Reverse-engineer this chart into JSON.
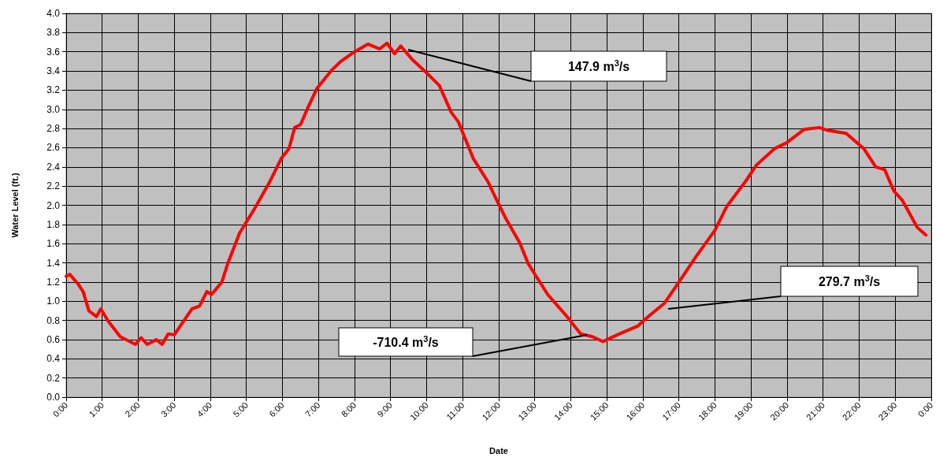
{
  "chart_data": {
    "type": "line",
    "xlabel": "Date",
    "ylabel": "Water Level (ft.)",
    "x": [
      0,
      0.1,
      0.35,
      0.47,
      0.63,
      0.84,
      0.96,
      1.17,
      1.5,
      1.92,
      2.08,
      2.25,
      2.5,
      2.66,
      2.83,
      3.0,
      3.49,
      3.7,
      3.9,
      4.03,
      4.32,
      4.48,
      4.81,
      5.22,
      5.64,
      5.97,
      6.18,
      6.34,
      6.5,
      6.72,
      6.96,
      7.37,
      7.62,
      8.0,
      8.37,
      8.7,
      8.9,
      9.11,
      9.28,
      9.6,
      10.0,
      10.35,
      10.68,
      10.88,
      11.29,
      11.71,
      11.91,
      12.2,
      12.58,
      12.82,
      13.36,
      13.94,
      14.27,
      14.6,
      14.89,
      15.35,
      15.85,
      16.18,
      16.6,
      17.0,
      17.5,
      18.0,
      18.33,
      18.83,
      19.15,
      19.65,
      19.98,
      20.47,
      20.89,
      21.14,
      21.64,
      22.13,
      22.46,
      22.71,
      22.96,
      23.2,
      23.61,
      23.85
    ],
    "series": [
      {
        "color": "#ff0000",
        "values": [
          1.26,
          1.28,
          1.17,
          1.1,
          0.9,
          0.84,
          0.92,
          0.79,
          0.63,
          0.55,
          0.62,
          0.55,
          0.6,
          0.55,
          0.66,
          0.65,
          0.92,
          0.95,
          1.1,
          1.07,
          1.2,
          1.39,
          1.71,
          1.96,
          2.24,
          2.49,
          2.59,
          2.81,
          2.84,
          3.03,
          3.22,
          3.41,
          3.5,
          3.6,
          3.68,
          3.63,
          3.69,
          3.58,
          3.66,
          3.52,
          3.38,
          3.25,
          2.97,
          2.87,
          2.49,
          2.24,
          2.08,
          1.86,
          1.61,
          1.39,
          1.07,
          0.82,
          0.66,
          0.63,
          0.58,
          0.66,
          0.74,
          0.85,
          0.98,
          1.2,
          1.48,
          1.74,
          1.99,
          2.24,
          2.42,
          2.59,
          2.65,
          2.79,
          2.81,
          2.78,
          2.75,
          2.59,
          2.4,
          2.37,
          2.15,
          2.05,
          1.77,
          1.69
        ]
      }
    ],
    "xlim": [
      0,
      24
    ],
    "xticks": [
      {
        "value": 0,
        "label": "0:00"
      },
      {
        "value": 1,
        "label": "1:00"
      },
      {
        "value": 2,
        "label": "2:00"
      },
      {
        "value": 3,
        "label": "3:00"
      },
      {
        "value": 4,
        "label": "4:00"
      },
      {
        "value": 5,
        "label": "5:00"
      },
      {
        "value": 6,
        "label": "6:00"
      },
      {
        "value": 7,
        "label": "7:00"
      },
      {
        "value": 8,
        "label": "8:00"
      },
      {
        "value": 9,
        "label": "9:00"
      },
      {
        "value": 10,
        "label": "10:00"
      },
      {
        "value": 11,
        "label": "11:00"
      },
      {
        "value": 12,
        "label": "12:00"
      },
      {
        "value": 13,
        "label": "13:00"
      },
      {
        "value": 14,
        "label": "14:00"
      },
      {
        "value": 15,
        "label": "15:00"
      },
      {
        "value": 16,
        "label": "16:00"
      },
      {
        "value": 17,
        "label": "17:00"
      },
      {
        "value": 18,
        "label": "18:00"
      },
      {
        "value": 19,
        "label": "19:00"
      },
      {
        "value": 20,
        "label": "20:00"
      },
      {
        "value": 21,
        "label": "21:00"
      },
      {
        "value": 22,
        "label": "22:00"
      },
      {
        "value": 23,
        "label": "23:00"
      },
      {
        "value": 24,
        "label": "0:00"
      }
    ],
    "ylim": [
      0,
      4
    ],
    "yticks": [
      {
        "value": 0,
        "label": "0.0"
      },
      0.2,
      0.4,
      0.6,
      0.8,
      {
        "value": 1,
        "label": "1.0"
      },
      1.2,
      1.4,
      1.6,
      1.8,
      {
        "value": 2,
        "label": "2.0"
      },
      2.2,
      2.4,
      2.6,
      2.8,
      {
        "value": 3,
        "label": "3.0"
      },
      3.2,
      3.4,
      3.6,
      3.8,
      {
        "value": 4,
        "label": "4.0"
      }
    ],
    "grid": true,
    "marker": "none",
    "line_style": "solid",
    "annotations": [
      "147.9 m$^{3}$/s",
      "279.7 m$^{3}$/s",
      "-710.4 m$^{3}$/s"
    ]
  }
}
